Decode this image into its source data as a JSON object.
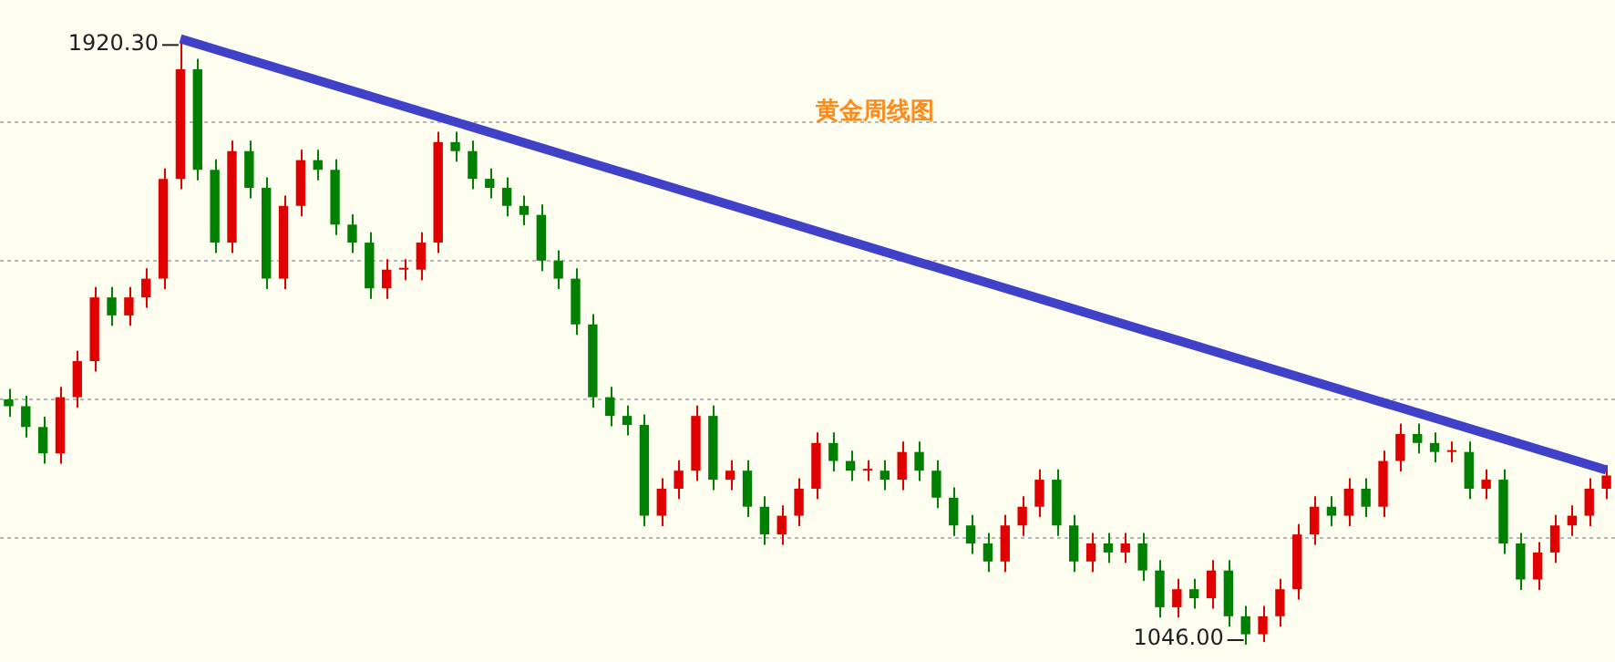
{
  "chart_data": {
    "type": "candlestick",
    "title": "黄金周线图",
    "categories": [
      null,
      null,
      null,
      null,
      null,
      null,
      null,
      null,
      null,
      null,
      null,
      null,
      null,
      null,
      null,
      null,
      null,
      null,
      null,
      null,
      null,
      null,
      null,
      null,
      null,
      null,
      null,
      null,
      null,
      null,
      null,
      null,
      null,
      null,
      null,
      null,
      null,
      null,
      null,
      null,
      null,
      null,
      null,
      null,
      null,
      null,
      null,
      null,
      null,
      null,
      null,
      null,
      null,
      null,
      null,
      null,
      null,
      null,
      null,
      null,
      null,
      null,
      null,
      null,
      null,
      null,
      null,
      null,
      null,
      null,
      null,
      null,
      null,
      null,
      null,
      null,
      null,
      null,
      null,
      null,
      null,
      null,
      null,
      null,
      null,
      null,
      null,
      null,
      null,
      null,
      null,
      null,
      null,
      null
    ],
    "ohlc": [
      [
        1400,
        1415,
        1375,
        1390
      ],
      [
        1390,
        1405,
        1345,
        1360
      ],
      [
        1360,
        1375,
        1307,
        1322
      ],
      [
        1322,
        1418,
        1307,
        1403
      ],
      [
        1403,
        1470,
        1388,
        1455
      ],
      [
        1455,
        1562,
        1440,
        1547
      ],
      [
        1547,
        1562,
        1506,
        1521
      ],
      [
        1521,
        1562,
        1506,
        1547
      ],
      [
        1547,
        1589,
        1532,
        1574
      ],
      [
        1574,
        1733,
        1559,
        1718
      ],
      [
        1718,
        1920.3,
        1703,
        1876
      ],
      [
        1876,
        1891,
        1716,
        1731
      ],
      [
        1731,
        1746,
        1611,
        1626
      ],
      [
        1626,
        1773,
        1611,
        1758
      ],
      [
        1758,
        1773,
        1690,
        1705
      ],
      [
        1705,
        1720,
        1559,
        1574
      ],
      [
        1574,
        1694,
        1559,
        1679
      ],
      [
        1679,
        1760,
        1664,
        1745
      ],
      [
        1745,
        1760,
        1716,
        1731
      ],
      [
        1731,
        1746,
        1637,
        1652
      ],
      [
        1652,
        1667,
        1611,
        1626
      ],
      [
        1626,
        1641,
        1545,
        1560
      ],
      [
        1560,
        1602,
        1545,
        1587
      ],
      [
        1587,
        1602,
        1572,
        1587
      ],
      [
        1587,
        1641,
        1572,
        1626
      ],
      [
        1626,
        1786,
        1611,
        1771
      ],
      [
        1771,
        1786,
        1743,
        1758
      ],
      [
        1758,
        1773,
        1703,
        1718
      ],
      [
        1718,
        1733,
        1690,
        1705
      ],
      [
        1705,
        1720,
        1664,
        1679
      ],
      [
        1679,
        1694,
        1651,
        1666
      ],
      [
        1666,
        1681,
        1585,
        1600
      ],
      [
        1600,
        1615,
        1559,
        1574
      ],
      [
        1574,
        1589,
        1493,
        1508
      ],
      [
        1508,
        1523,
        1388,
        1403
      ],
      [
        1403,
        1418,
        1361,
        1376
      ],
      [
        1376,
        1391,
        1348,
        1363
      ],
      [
        1363,
        1378,
        1217,
        1232
      ],
      [
        1232,
        1286,
        1217,
        1271
      ],
      [
        1271,
        1312,
        1256,
        1297
      ],
      [
        1297,
        1391,
        1282,
        1376
      ],
      [
        1376,
        1391,
        1269,
        1284
      ],
      [
        1284,
        1312,
        1269,
        1297
      ],
      [
        1297,
        1312,
        1230,
        1245
      ],
      [
        1245,
        1260,
        1190,
        1205
      ],
      [
        1205,
        1247,
        1190,
        1232
      ],
      [
        1232,
        1286,
        1217,
        1271
      ],
      [
        1271,
        1352,
        1256,
        1337
      ],
      [
        1337,
        1352,
        1296,
        1311
      ],
      [
        1311,
        1326,
        1282,
        1297
      ],
      [
        1297,
        1312,
        1282,
        1297
      ],
      [
        1297,
        1312,
        1269,
        1284
      ],
      [
        1284,
        1339,
        1269,
        1324
      ],
      [
        1324,
        1339,
        1282,
        1297
      ],
      [
        1297,
        1312,
        1243,
        1258
      ],
      [
        1258,
        1273,
        1203,
        1218
      ],
      [
        1218,
        1233,
        1177,
        1192
      ],
      [
        1192,
        1207,
        1151,
        1166
      ],
      [
        1166,
        1233,
        1151,
        1218
      ],
      [
        1218,
        1260,
        1203,
        1245
      ],
      [
        1245,
        1299,
        1230,
        1284
      ],
      [
        1284,
        1299,
        1203,
        1218
      ],
      [
        1218,
        1233,
        1151,
        1166
      ],
      [
        1166,
        1207,
        1151,
        1192
      ],
      [
        1192,
        1207,
        1164,
        1179
      ],
      [
        1179,
        1207,
        1164,
        1192
      ],
      [
        1192,
        1207,
        1138,
        1153
      ],
      [
        1153,
        1168,
        1085,
        1100
      ],
      [
        1100,
        1141,
        1085,
        1126
      ],
      [
        1126,
        1141,
        1098,
        1113
      ],
      [
        1113,
        1168,
        1098,
        1153
      ],
      [
        1153,
        1168,
        1072,
        1087
      ],
      [
        1087,
        1102,
        1046.0,
        1061
      ],
      [
        1061,
        1102,
        1050,
        1087
      ],
      [
        1087,
        1141,
        1072,
        1126
      ],
      [
        1126,
        1220,
        1111,
        1205
      ],
      [
        1205,
        1260,
        1190,
        1245
      ],
      [
        1245,
        1260,
        1217,
        1232
      ],
      [
        1232,
        1286,
        1217,
        1271
      ],
      [
        1271,
        1286,
        1230,
        1245
      ],
      [
        1245,
        1326,
        1230,
        1311
      ],
      [
        1311,
        1365,
        1296,
        1350
      ],
      [
        1350,
        1365,
        1322,
        1337
      ],
      [
        1337,
        1352,
        1309,
        1324
      ],
      [
        1324,
        1339,
        1309,
        1324
      ],
      [
        1324,
        1339,
        1256,
        1271
      ],
      [
        1271,
        1299,
        1256,
        1284
      ],
      [
        1284,
        1299,
        1177,
        1192
      ],
      [
        1192,
        1207,
        1125,
        1140
      ],
      [
        1140,
        1194,
        1125,
        1179
      ],
      [
        1179,
        1233,
        1164,
        1218
      ],
      [
        1218,
        1247,
        1203,
        1232
      ],
      [
        1232,
        1286,
        1217,
        1271
      ],
      [
        1271,
        1305,
        1256,
        1290
      ]
    ],
    "series": [
      {
        "type": "line",
        "color": "#4040c8",
        "values": [
          null,
          null,
          null,
          null,
          null,
          null,
          null,
          null,
          null,
          null,
          1920,
          null,
          null,
          null,
          null,
          null,
          null,
          null,
          null,
          null,
          null,
          null,
          null,
          null,
          null,
          null,
          null,
          null,
          null,
          null,
          null,
          null,
          null,
          null,
          null,
          null,
          null,
          null,
          null,
          null,
          null,
          null,
          null,
          null,
          null,
          null,
          null,
          null,
          null,
          null,
          null,
          null,
          null,
          null,
          null,
          null,
          null,
          null,
          null,
          null,
          null,
          null,
          null,
          null,
          null,
          null,
          null,
          null,
          null,
          null,
          null,
          null,
          null,
          null,
          null,
          null,
          null,
          null,
          null,
          null,
          null,
          null,
          null,
          null,
          null,
          null,
          null,
          null,
          null,
          null,
          null,
          null,
          null,
          1298
        ]
      }
    ],
    "ylim": [
      1021,
      1976
    ],
    "yticks": [
      {
        "value": 1200,
        "label": null
      },
      {
        "value": 1400,
        "label": null
      },
      {
        "value": 1600,
        "label": null
      },
      {
        "value": 1800,
        "label": null
      }
    ],
    "grid": "y",
    "tick_labels": false,
    "legend": false,
    "annotations": [
      "1920.30",
      "1046.00"
    ]
  }
}
